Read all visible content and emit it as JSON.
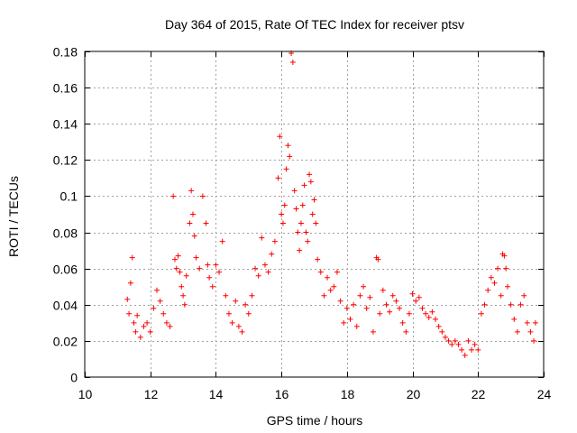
{
  "chart_data": {
    "type": "scatter",
    "title": "Day 364 of 2015, Rate Of TEC Index for receiver ptsv",
    "xlabel": "GPS time / hours",
    "ylabel": "ROTI / TECUs",
    "xlim": [
      10,
      24
    ],
    "ylim": [
      0,
      0.18
    ],
    "x_ticks": [
      10,
      12,
      14,
      16,
      18,
      20,
      22,
      24
    ],
    "x_tick_labels": [
      "10",
      "12",
      "14",
      "16",
      "18",
      "20",
      "22",
      "24"
    ],
    "y_ticks": [
      0,
      0.02,
      0.04,
      0.06,
      0.08,
      0.1,
      0.12,
      0.14,
      0.16,
      0.18
    ],
    "y_tick_labels": [
      "0",
      "0.02",
      "0.04",
      "0.06",
      "0.08",
      "0.1",
      "0.12",
      "0.14",
      "0.16",
      "0.18"
    ],
    "grid": true,
    "marker": "+",
    "marker_color": "#ff0000",
    "series": [
      {
        "name": "ROTI",
        "color": "#ff0000",
        "x": [
          11.3,
          11.35,
          11.4,
          11.45,
          11.5,
          11.55,
          11.6,
          11.7,
          11.8,
          11.9,
          12.0,
          12.1,
          12.2,
          12.3,
          12.4,
          12.5,
          12.6,
          12.7,
          12.75,
          12.8,
          12.85,
          12.9,
          12.95,
          13.0,
          13.05,
          13.1,
          13.2,
          13.25,
          13.3,
          13.35,
          13.4,
          13.5,
          13.6,
          13.7,
          13.75,
          13.8,
          13.9,
          14.0,
          14.1,
          14.2,
          14.3,
          14.4,
          14.5,
          14.6,
          14.7,
          14.8,
          14.9,
          15.0,
          15.1,
          15.2,
          15.3,
          15.4,
          15.5,
          15.6,
          15.7,
          15.8,
          15.9,
          15.95,
          16.0,
          16.05,
          16.1,
          16.15,
          16.2,
          16.25,
          16.3,
          16.35,
          16.4,
          16.45,
          16.5,
          16.55,
          16.6,
          16.65,
          16.7,
          16.75,
          16.8,
          16.85,
          16.9,
          16.95,
          17.0,
          17.05,
          17.1,
          17.2,
          17.3,
          17.4,
          17.5,
          17.6,
          17.7,
          17.8,
          17.9,
          18.0,
          18.1,
          18.2,
          18.3,
          18.4,
          18.5,
          18.6,
          18.7,
          18.8,
          18.9,
          18.95,
          19.0,
          19.1,
          19.2,
          19.3,
          19.4,
          19.5,
          19.6,
          19.7,
          19.8,
          19.9,
          20.0,
          20.1,
          20.2,
          20.3,
          20.4,
          20.5,
          20.6,
          20.7,
          20.8,
          20.9,
          21.0,
          21.1,
          21.2,
          21.3,
          21.4,
          21.5,
          21.6,
          21.7,
          21.8,
          21.9,
          22.0,
          22.1,
          22.2,
          22.3,
          22.4,
          22.5,
          22.6,
          22.7,
          22.75,
          22.8,
          22.85,
          22.9,
          23.0,
          23.1,
          23.2,
          23.3,
          23.4,
          23.5,
          23.6,
          23.7,
          23.75
        ],
        "y": [
          0.043,
          0.035,
          0.052,
          0.066,
          0.03,
          0.025,
          0.034,
          0.022,
          0.028,
          0.03,
          0.025,
          0.038,
          0.048,
          0.042,
          0.035,
          0.03,
          0.028,
          0.1,
          0.065,
          0.06,
          0.067,
          0.058,
          0.05,
          0.045,
          0.04,
          0.056,
          0.085,
          0.103,
          0.09,
          0.078,
          0.066,
          0.06,
          0.1,
          0.085,
          0.062,
          0.055,
          0.05,
          0.062,
          0.058,
          0.075,
          0.045,
          0.035,
          0.03,
          0.042,
          0.028,
          0.025,
          0.04,
          0.035,
          0.045,
          0.06,
          0.056,
          0.077,
          0.062,
          0.058,
          0.068,
          0.075,
          0.11,
          0.133,
          0.09,
          0.085,
          0.095,
          0.115,
          0.128,
          0.122,
          0.179,
          0.174,
          0.103,
          0.093,
          0.08,
          0.07,
          0.085,
          0.095,
          0.106,
          0.08,
          0.075,
          0.112,
          0.108,
          0.09,
          0.098,
          0.085,
          0.065,
          0.058,
          0.045,
          0.055,
          0.048,
          0.05,
          0.058,
          0.042,
          0.03,
          0.038,
          0.032,
          0.04,
          0.028,
          0.045,
          0.05,
          0.038,
          0.044,
          0.025,
          0.066,
          0.065,
          0.035,
          0.048,
          0.04,
          0.036,
          0.045,
          0.042,
          0.038,
          0.03,
          0.025,
          0.035,
          0.046,
          0.042,
          0.044,
          0.038,
          0.035,
          0.033,
          0.036,
          0.032,
          0.028,
          0.025,
          0.022,
          0.02,
          0.018,
          0.02,
          0.018,
          0.015,
          0.012,
          0.02,
          0.015,
          0.018,
          0.015,
          0.035,
          0.04,
          0.048,
          0.055,
          0.052,
          0.06,
          0.045,
          0.068,
          0.067,
          0.06,
          0.05,
          0.04,
          0.032,
          0.025,
          0.04,
          0.045,
          0.03,
          0.025,
          0.02,
          0.03
        ]
      }
    ]
  }
}
